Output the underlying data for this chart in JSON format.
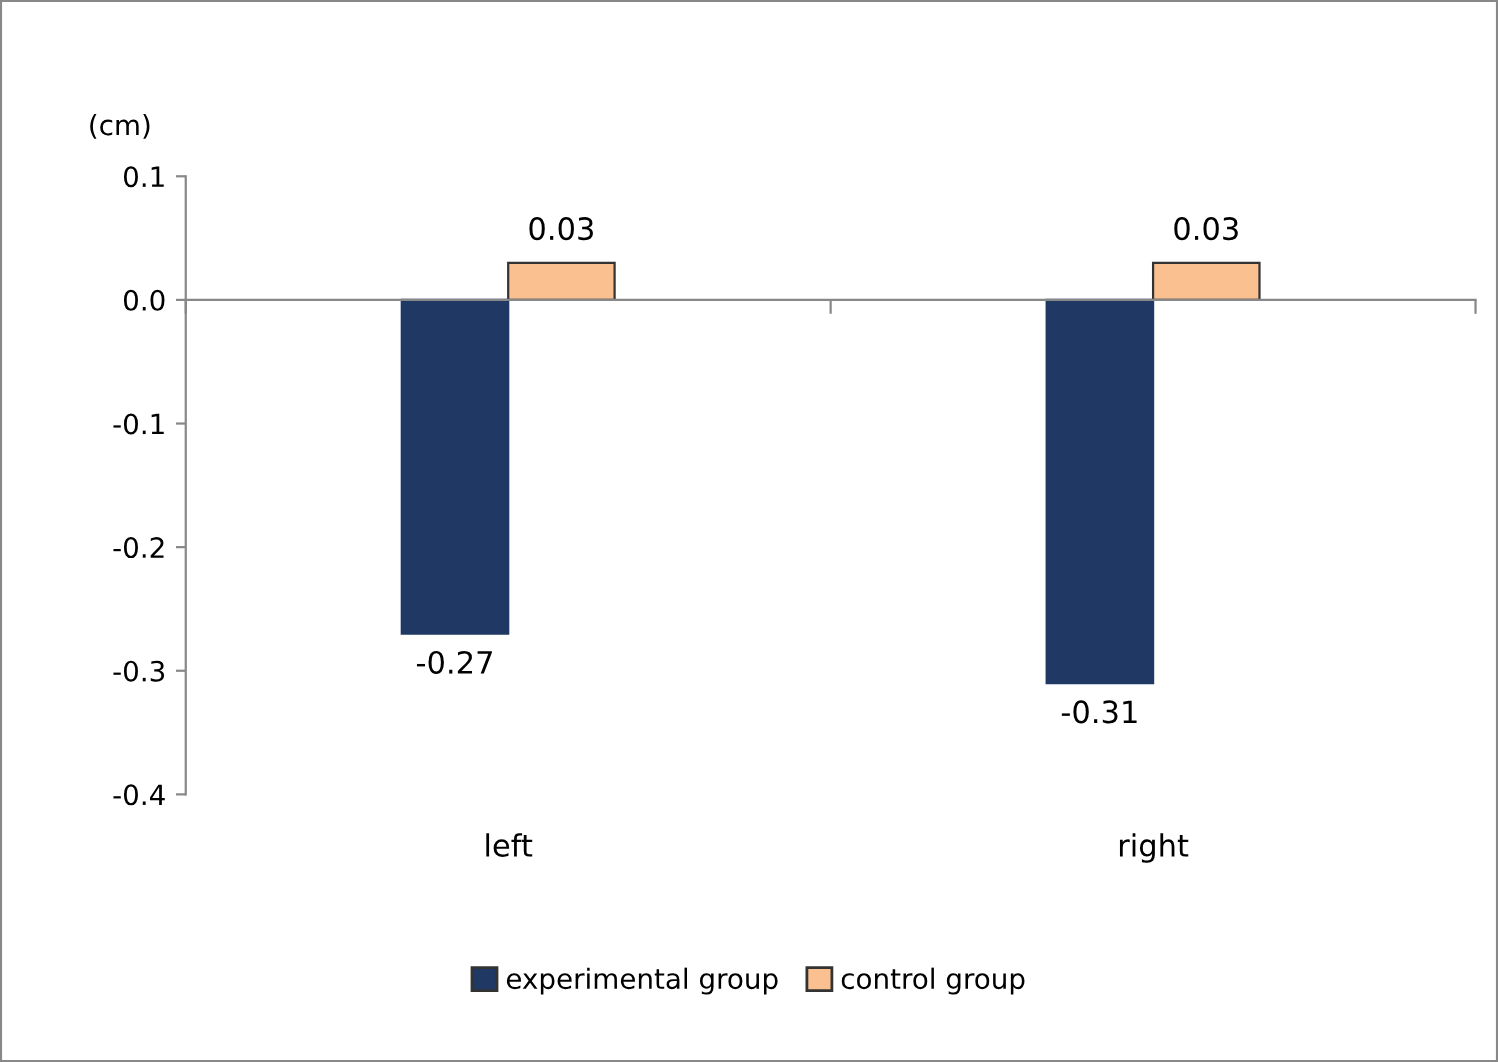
{
  "chart_data": {
    "type": "bar",
    "ylabel": "(cm)",
    "categories": [
      "left",
      "right"
    ],
    "series": [
      {
        "name": "experimental group",
        "color": "#1f3864",
        "values": [
          -0.27,
          -0.31
        ]
      },
      {
        "name": "control group",
        "color": "#fac090",
        "values": [
          0.03,
          0.03
        ]
      }
    ],
    "ylim": [
      -0.4,
      0.1
    ],
    "yticks": [
      {
        "value": 0.1,
        "label": "0.1"
      },
      {
        "value": 0.0,
        "label": "0.0"
      },
      {
        "value": -0.1,
        "label": "-0.1"
      },
      {
        "value": -0.2,
        "label": "-0.2"
      },
      {
        "value": -0.3,
        "label": "-0.3"
      },
      {
        "value": -0.4,
        "label": "-0.4"
      }
    ],
    "data_labels": true,
    "legend": "bottom"
  }
}
